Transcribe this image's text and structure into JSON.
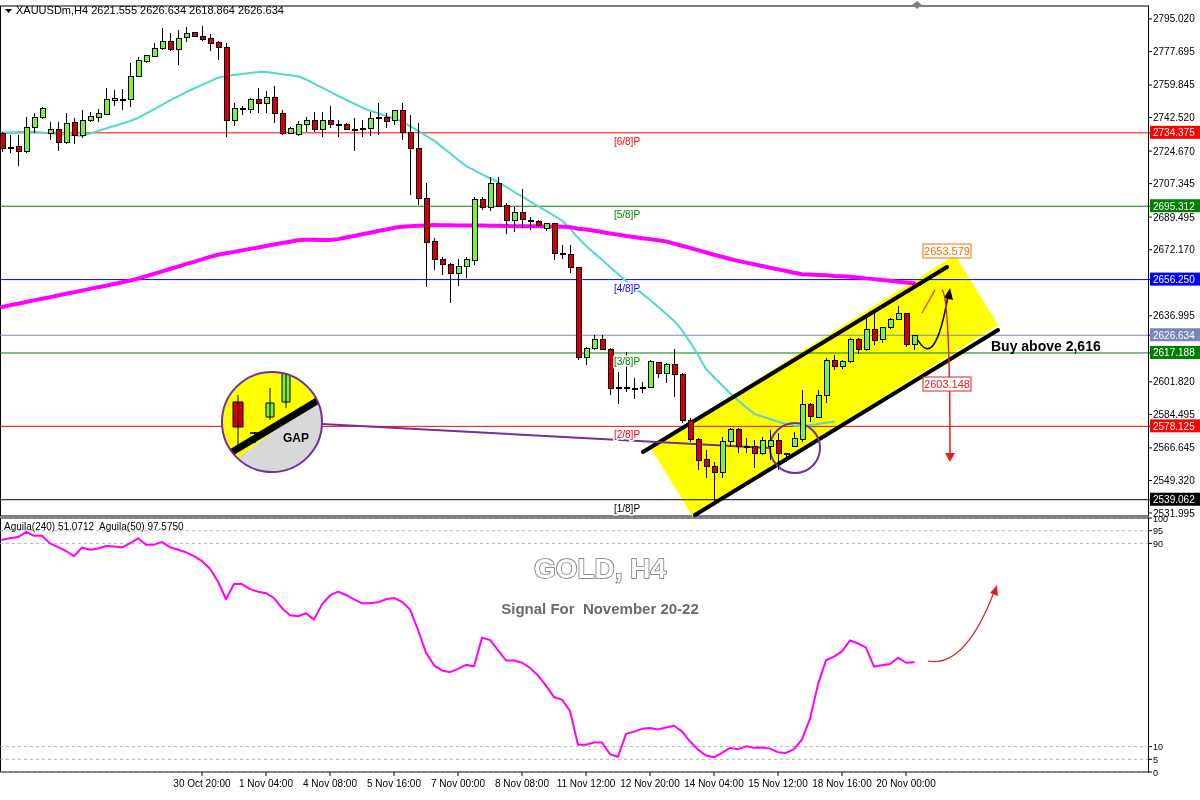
{
  "chart_data": [
    {
      "type": "candlestick",
      "title": "XAUUSDm,H4 2621.555 2626.634 2618.864 2626.634",
      "categories": [
        null,
        null,
        null,
        null,
        null,
        null,
        null,
        null,
        null,
        null,
        null,
        null,
        null,
        null,
        null,
        null,
        null,
        null,
        null,
        null,
        null,
        null,
        null,
        null,
        null,
        null,
        null,
        null,
        null,
        null,
        null,
        null,
        null,
        null,
        null,
        null,
        null,
        null,
        null,
        null,
        null,
        null,
        null,
        null,
        null,
        null,
        null,
        null,
        null,
        null,
        null,
        null,
        null,
        null,
        null,
        null,
        null,
        null,
        null,
        null,
        null,
        null,
        null,
        null,
        null,
        null,
        null,
        null,
        null,
        null,
        null,
        null,
        null,
        null,
        null,
        null,
        null,
        null,
        null,
        null,
        null,
        null,
        null,
        null,
        null,
        null,
        null,
        null,
        null,
        null,
        null,
        null,
        null,
        null,
        null,
        null,
        null,
        null,
        null,
        null,
        null,
        null,
        null,
        null,
        null,
        null,
        null,
        null,
        null,
        null,
        null,
        null,
        null,
        null,
        null
      ],
      "ohlc": [
        [
          2734,
          2735,
          2724,
          2726
        ],
        [
          2726.5,
          2733,
          2723.5,
          2726.5
        ],
        [
          2727,
          2733.4,
          2716.9,
          2724.4
        ],
        [
          2724.4,
          2742.6,
          2723.9,
          2737.3
        ],
        [
          2737.3,
          2745,
          2734.1,
          2742.6
        ],
        [
          2742.6,
          2748,
          2742,
          2747.4
        ],
        [
          2733.8,
          2740.3,
          2730.6,
          2736.3
        ],
        [
          2736.3,
          2740.3,
          2724.6,
          2729.4
        ],
        [
          2729.4,
          2744.8,
          2728.5,
          2739.2
        ],
        [
          2739.7,
          2742.4,
          2728.3,
          2732.7
        ],
        [
          2732.7,
          2746.6,
          2731.8,
          2741
        ],
        [
          2741,
          2745.3,
          2740.2,
          2743.2
        ],
        [
          2742.6,
          2747.3,
          2740.2,
          2744.8
        ],
        [
          2744.4,
          2758.1,
          2743.9,
          2752.2
        ],
        [
          2751.6,
          2757.2,
          2748.6,
          2752.5
        ],
        [
          2752.3,
          2757.5,
          2746.5,
          2752.3
        ],
        [
          2752.2,
          2771.7,
          2748,
          2764.3
        ],
        [
          2764.3,
          2775,
          2764,
          2772.7
        ],
        [
          2772.4,
          2775.8,
          2771.8,
          2775.3
        ],
        [
          2775,
          2782.4,
          2774.6,
          2779.4
        ],
        [
          2779.4,
          2790,
          2778.5,
          2782.8
        ],
        [
          2782.8,
          2787.7,
          2778.1,
          2778.5
        ],
        [
          2778.5,
          2789.1,
          2770.5,
          2784.7
        ],
        [
          2785.3,
          2790.6,
          2783,
          2787.4
        ],
        [
          2787.6,
          2788.3,
          2785.3,
          2785.6
        ],
        [
          2785.9,
          2791,
          2783.5,
          2784.2
        ],
        [
          2784.7,
          2787,
          2778,
          2782.1
        ],
        [
          2782.4,
          2783.5,
          2773.2,
          2779.7
        ],
        [
          2779.7,
          2782.1,
          2732,
          2740.9
        ],
        [
          2740.9,
          2750.1,
          2738,
          2747.4
        ],
        [
          2747.2,
          2748.7,
          2744,
          2747.6
        ],
        [
          2747,
          2752.8,
          2744.8,
          2752.2
        ],
        [
          2752.2,
          2758.1,
          2745,
          2750.1
        ],
        [
          2750.1,
          2756.5,
          2744.8,
          2753.3
        ],
        [
          2753.3,
          2759.4,
          2739.8,
          2744.8
        ],
        [
          2744.8,
          2746.6,
          2733.3,
          2733.8
        ],
        [
          2733.8,
          2737.6,
          2733.5,
          2736.8
        ],
        [
          2733.3,
          2740.9,
          2732.7,
          2738.6
        ],
        [
          2738.6,
          2742.7,
          2734.8,
          2741
        ],
        [
          2741,
          2745.7,
          2734.6,
          2736
        ],
        [
          2736.3,
          2745.7,
          2732,
          2741
        ],
        [
          2741,
          2748.7,
          2736.8,
          2738.6
        ],
        [
          2738.8,
          2741,
          2732,
          2738.6
        ],
        [
          2738.6,
          2739.5,
          2735.8,
          2736.3
        ],
        [
          2736.4,
          2742.2,
          2724.9,
          2736.2
        ],
        [
          2735.9,
          2741,
          2732,
          2736.8
        ],
        [
          2736.8,
          2745.3,
          2732.5,
          2742.2
        ],
        [
          2742.5,
          2750.1,
          2733.3,
          2742.7
        ],
        [
          2742.7,
          2744.8,
          2736.8,
          2740.3
        ],
        [
          2740.9,
          2746.6,
          2738.6,
          2746.1
        ],
        [
          2746.1,
          2750.1,
          2730.8,
          2734.6
        ],
        [
          2734.6,
          2744,
          2701.3,
          2726.1
        ],
        [
          2726.1,
          2739.5,
          2695.7,
          2699.5
        ],
        [
          2699.5,
          2707.5,
          2652.5,
          2675.9
        ],
        [
          2676.5,
          2678.2,
          2661.4,
          2666.7
        ],
        [
          2667.1,
          2668.5,
          2658.7,
          2664.4
        ],
        [
          2664.4,
          2664.9,
          2643.6,
          2659.6
        ],
        [
          2659.6,
          2667,
          2652.9,
          2663.2
        ],
        [
          2663.2,
          2668.5,
          2656.9,
          2666.7
        ],
        [
          2666.2,
          2700.4,
          2664,
          2699
        ],
        [
          2699,
          2700.4,
          2693.3,
          2694.7
        ],
        [
          2694.7,
          2710.7,
          2693,
          2707.2
        ],
        [
          2707.2,
          2710.7,
          2694.7,
          2695.1
        ],
        [
          2695.6,
          2696.9,
          2680.5,
          2687.6
        ],
        [
          2687.6,
          2695.1,
          2681.8,
          2691.9
        ],
        [
          2691.9,
          2704.3,
          2683.6,
          2688
        ],
        [
          2687.8,
          2689.8,
          2682.7,
          2687.6
        ],
        [
          2687.3,
          2688,
          2684,
          2685.2
        ],
        [
          2683.6,
          2686.2,
          2682.3,
          2685.9
        ],
        [
          2685.9,
          2686.2,
          2666.7,
          2670.2
        ],
        [
          2670.3,
          2674.7,
          2667,
          2670.1
        ],
        [
          2669.4,
          2674.7,
          2659.6,
          2662.8
        ],
        [
          2662.8,
          2663.2,
          2613.5,
          2614.9
        ],
        [
          2614.9,
          2620.5,
          2610.8,
          2619.7
        ],
        [
          2619.7,
          2626.8,
          2618.8,
          2624.5
        ],
        [
          2624.1,
          2626.8,
          2618.8,
          2619.1
        ],
        [
          2619.1,
          2619.7,
          2594.8,
          2598.4
        ],
        [
          2598.6,
          2607.2,
          2590,
          2598.4
        ],
        [
          2598.4,
          2617.9,
          2596.6,
          2598.6
        ],
        [
          2598.5,
          2603.7,
          2592.5,
          2598.2
        ],
        [
          2598.8,
          2601.9,
          2595.7,
          2598.7
        ],
        [
          2598.9,
          2613.4,
          2598.4,
          2612.6
        ],
        [
          2612,
          2612.6,
          2603.7,
          2606.3
        ],
        [
          2606.3,
          2612,
          2601.4,
          2611.3
        ],
        [
          2611.3,
          2619.1,
          2593.6,
          2605.5
        ],
        [
          2605.5,
          2606.3,
          2579.7,
          2581.2
        ],
        [
          2581.2,
          2582.8,
          2569.6,
          2570.9
        ],
        [
          2570.9,
          2571.7,
          2554.9,
          2560.2
        ],
        [
          2560.5,
          2565.5,
          2550.4,
          2556.6
        ],
        [
          2556.6,
          2559.3,
          2537.5,
          2553.6
        ],
        [
          2553.5,
          2572.6,
          2550.4,
          2570
        ],
        [
          2570,
          2577,
          2567.3,
          2576.2
        ],
        [
          2576.2,
          2577,
          2563.7,
          2567.3
        ],
        [
          2567.4,
          2571.7,
          2563.7,
          2567.2
        ],
        [
          2567.3,
          2570.8,
          2555.8,
          2563.7
        ],
        [
          2563.7,
          2572.6,
          2562.9,
          2570.8
        ],
        [
          2567.3,
          2576.2,
          2560.2,
          2570.5
        ],
        [
          2570.8,
          2574.4,
          2554.9,
          2563.7
        ],
        [
          2563.5,
          2563.7,
          2559.3,
          2563.3
        ],
        [
          2567.6,
          2575.3,
          2567.3,
          2571.7
        ],
        [
          2571.2,
          2597.5,
          2569.9,
          2589.8
        ],
        [
          2589.8,
          2590.4,
          2580.6,
          2583.3
        ],
        [
          2582.9,
          2597.5,
          2582.4,
          2594.3
        ],
        [
          2594.3,
          2614.3,
          2590.4,
          2613.4
        ],
        [
          2613.4,
          2616.1,
          2608.1,
          2609.9
        ],
        [
          2610.2,
          2613.6,
          2608.6,
          2612.9
        ],
        [
          2612.5,
          2625.1,
          2611.6,
          2624.4
        ],
        [
          2624.4,
          2625.3,
          2616.8,
          2618.8
        ],
        [
          2618.8,
          2635.6,
          2618.4,
          2629.8
        ],
        [
          2629.8,
          2638.3,
          2621.4,
          2624
        ],
        [
          2624.4,
          2631.2,
          2622.3,
          2630.7
        ],
        [
          2630.7,
          2635.6,
          2630.2,
          2635.1
        ],
        [
          2635.1,
          2642.2,
          2634.7,
          2638.3
        ],
        [
          2638.3,
          2638.6,
          2620.5,
          2621.8
        ],
        [
          2621.555,
          2626.634,
          2618.864,
          2626.634
        ]
      ],
      "series": [
        {
          "type": "line",
          "color": "#4fd8d0",
          "values": [
            2734.5,
            2734.6,
            2734.8,
            2734.9,
            2735,
            2734.6,
            2734.2,
            2733.8,
            2733.4,
            2733.1,
            2732.7,
            2734,
            2735.4,
            2736.7,
            2738,
            2739.3,
            2740.7,
            2742.3,
            2744.6,
            2746.9,
            2749.3,
            2751.6,
            2753.8,
            2756.1,
            2758,
            2759.9,
            2761.8,
            2763.7,
            2764.7,
            2765.2,
            2765.7,
            2766.2,
            2766.7,
            2766.8,
            2766.2,
            2765.6,
            2765,
            2764.5,
            2762.8,
            2760.6,
            2758.4,
            2756.3,
            2754.1,
            2752,
            2749.9,
            2747.9,
            2746.1,
            2744.8,
            2743.4,
            2742,
            2740.4,
            2737.9,
            2735.4,
            2732.9,
            2730.3,
            2726.9,
            2723.5,
            2720.1,
            2716.7,
            2714.5,
            2712.3,
            2710.2,
            2708.1,
            2705.6,
            2703,
            2700.5,
            2697.9,
            2695.3,
            2692.8,
            2690.3,
            2687.7,
            2683.4,
            2678.5,
            2674.2,
            2670.4,
            2666.8,
            2663,
            2659.2,
            2655.4,
            2652,
            2648.9,
            2645.4,
            2641.8,
            2638.1,
            2634.4,
            2629.3,
            2623,
            2616.2,
            2608.7,
            2604.3,
            2600,
            2595.7,
            2592,
            2588.3,
            2584.9,
            2583.4,
            2582,
            2580.6,
            2579.4,
            2578.6,
            2578.2,
            2578.8,
            2579.4,
            2580,
            2580.6,
            null,
            null,
            null,
            null,
            null,
            null,
            null,
            null,
            null,
            null
          ]
        },
        {
          "type": "line",
          "color": "#ff00ff",
          "values": [
            2641.7,
            2642.6,
            2643.4,
            2644.3,
            2645.2,
            2646.1,
            2646.9,
            2647.8,
            2648.7,
            2649.5,
            2650.4,
            2651.3,
            2652.2,
            2653,
            2653.9,
            2654.8,
            2655.7,
            2656.8,
            2658.1,
            2659.3,
            2660.6,
            2661.9,
            2663.2,
            2664.5,
            2665.7,
            2667,
            2668.3,
            2669.5,
            2670.3,
            2671,
            2671.8,
            2672.6,
            2673.3,
            2674.1,
            2674.9,
            2675.7,
            2676.4,
            2677.2,
            2677.4,
            2677.4,
            2677.3,
            2677.3,
            2677.8,
            2678.7,
            2679.5,
            2680.4,
            2681.2,
            2682.1,
            2682.9,
            2683.8,
            2684.4,
            2684.7,
            2684.9,
            2685.1,
            2685.3,
            2685.2,
            2685.2,
            2685.1,
            2685.1,
            2685,
            2685,
            2684.9,
            2684.9,
            2684.8,
            2684.7,
            2684.7,
            2684.6,
            2684.6,
            2684.5,
            2684.5,
            2684.4,
            2684.2,
            2683.3,
            2682.9,
            2682.3,
            2681.6,
            2680.8,
            2680.2,
            2679.5,
            2678.9,
            2678.3,
            2677.8,
            2677.2,
            2676.6,
            2675.4,
            2674.3,
            2673.1,
            2671.9,
            2670.7,
            2669.5,
            2668.4,
            2667.2,
            2666.2,
            2665.3,
            2664.4,
            2663.5,
            2662.6,
            2661.7,
            2660.8,
            2659.9,
            2659.1,
            2658.9,
            2658.7,
            2658.5,
            2658.2,
            2658,
            2657.8,
            2657.4,
            2656.9,
            2656.5,
            2656,
            2655.6,
            2655.1,
            2654.7,
            2654.3
          ]
        }
      ],
      "ylim": [
        2530.4,
        2801.9
      ],
      "yticks": [
        {
          "value": 2795.02,
          "label": "2795.020"
        },
        {
          "value": 2777.695,
          "label": "2777.695"
        },
        {
          "value": 2759.845,
          "label": "2759.845"
        },
        {
          "value": 2742.52,
          "label": "2742.520"
        },
        {
          "value": 2734.375,
          "label": "2734.375"
        },
        {
          "value": 2724.67,
          "label": "2724.670"
        },
        {
          "value": 2707.345,
          "label": "2707.345"
        },
        {
          "value": 2695.312,
          "label": "2695.312"
        },
        {
          "value": 2689.495,
          "label": "2689.495"
        },
        {
          "value": 2672.17,
          "label": "2672.170"
        },
        {
          "value": 2656.25,
          "label": "2656.250"
        },
        {
          "value": 2636.995,
          "label": "2636.995"
        },
        {
          "value": 2626.634,
          "label": "2626.634"
        },
        {
          "value": 2617.188,
          "label": "2617.188"
        },
        {
          "value": 2601.82,
          "label": "2601.820"
        },
        {
          "value": 2584.495,
          "label": "2584.495"
        },
        {
          "value": 2578.125,
          "label": "2578.125"
        },
        {
          "value": 2566.645,
          "label": "2566.645"
        },
        {
          "value": 2549.32,
          "label": "2549.320"
        },
        {
          "value": 2539.062,
          "label": "2539.062"
        },
        {
          "value": 2531.995,
          "label": "2531.995"
        }
      ],
      "tick_labels": "y",
      "ref_lines": [
        {
          "axis": "y",
          "value": 2734.375,
          "label": "[6/8]P",
          "color": "#ff0000"
        },
        {
          "axis": "y",
          "value": 2695.312,
          "label": "[5/8]P",
          "color": "#008000"
        },
        {
          "axis": "y",
          "value": 2656.25,
          "label": "[4/8]P",
          "color": "#0000ff"
        },
        {
          "axis": "y",
          "value": 2626.634,
          "label": null,
          "color": "#7a86b8"
        },
        {
          "axis": "y",
          "value": 2617.188,
          "label": "[3/8]P",
          "color": "#008000"
        },
        {
          "axis": "y",
          "value": 2578.125,
          "label": "[2/8]P",
          "color": "#ff0000"
        },
        {
          "axis": "y",
          "value": 2539.062,
          "label": "[1/8]P",
          "color": "#000000"
        }
      ],
      "annotations": [
        "Buy above 2,616",
        "2653.579",
        "2603.148",
        "GAP"
      ]
    },
    {
      "type": "line",
      "title": "GOLD, H4",
      "subtitle": "Signal For  November 20-22",
      "categories": [
        null,
        null,
        null,
        null,
        null,
        null,
        null,
        null,
        null,
        null,
        null,
        null,
        null,
        null,
        null,
        null,
        null,
        null,
        null,
        null,
        null,
        null,
        null,
        null,
        null,
        "30 Oct 20:00",
        null,
        null,
        null,
        null,
        null,
        null,
        null,
        "1 Nov 04:00",
        null,
        null,
        null,
        null,
        null,
        null,
        null,
        "4 Nov 08:00",
        null,
        null,
        null,
        null,
        null,
        null,
        null,
        "5 Nov 16:00",
        null,
        null,
        null,
        null,
        null,
        null,
        null,
        "7 Nov 00:00",
        null,
        null,
        null,
        null,
        null,
        null,
        null,
        "8 Nov 08:00",
        null,
        null,
        null,
        null,
        null,
        null,
        null,
        "11 Nov 12:00",
        null,
        null,
        null,
        null,
        null,
        null,
        null,
        "12 Nov 20:00",
        null,
        null,
        null,
        null,
        null,
        null,
        null,
        "14 Nov 04:00",
        null,
        null,
        null,
        null,
        null,
        null,
        null,
        "15 Nov 12:00",
        null,
        null,
        null,
        null,
        null,
        null,
        null,
        "18 Nov 16:00",
        null,
        null,
        null,
        null,
        null,
        null,
        null,
        "20 Nov 00:00",
        null
      ],
      "series": [
        {
          "color": "#ff00ff",
          "values": [
            91.4,
            92,
            92.5,
            94.5,
            93,
            93,
            90,
            88.5,
            87,
            85,
            88.4,
            87.5,
            88,
            89,
            88.8,
            88.4,
            90,
            92,
            89.5,
            89.5,
            90.5,
            88.5,
            87.5,
            86.5,
            85,
            83,
            80,
            75,
            68,
            74,
            74,
            72,
            71,
            70.4,
            68.5,
            64.5,
            61.7,
            61.3,
            62.5,
            60,
            66,
            69.5,
            71,
            69.7,
            68,
            66.4,
            66.4,
            66.8,
            68,
            68.5,
            67,
            64,
            56,
            47,
            42,
            40,
            39.3,
            40.6,
            42.2,
            41.5,
            52.9,
            52,
            48,
            43.9,
            43.9,
            43,
            41,
            38,
            34,
            29.5,
            28.5,
            24,
            10.7,
            10.7,
            11.6,
            11.6,
            7,
            6,
            15,
            15.9,
            17,
            17.3,
            16.7,
            17.5,
            18.2,
            16,
            12,
            8.8,
            6.5,
            5.8,
            7.5,
            9.5,
            9,
            10.1,
            9.5,
            9.6,
            9.2,
            7.8,
            7.5,
            9,
            12.8,
            21,
            34.5,
            44,
            45.4,
            47.5,
            51.8,
            50.6,
            49,
            41.5,
            42,
            42.5,
            45,
            43,
            43.2
          ]
        }
      ],
      "ylim": [
        0,
        100
      ],
      "yticks": [
        100,
        95,
        90,
        10,
        5,
        0
      ],
      "grid": "y",
      "annotations": [
        "Aguila(240) 51.0712  Aguila(50) 97.5750"
      ]
    }
  ]
}
